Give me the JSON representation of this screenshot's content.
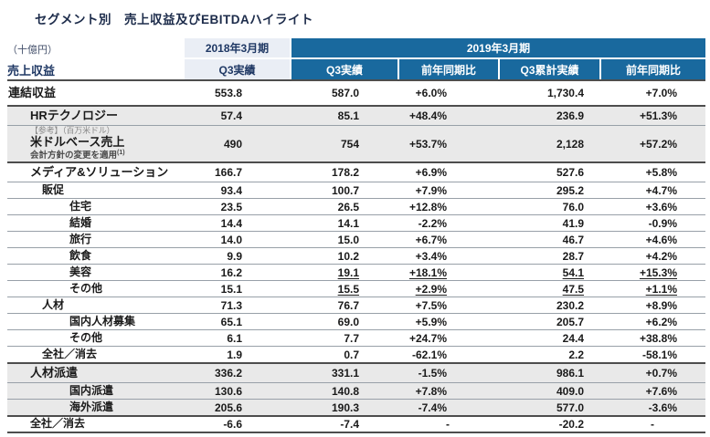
{
  "title": "セグメント別　売上収益及びEBITDAハイライト",
  "colors": {
    "header_blue": "#19699E",
    "header_light": "#EAEEF5",
    "shaded_row": "#E9E9E9",
    "navy_text": "#1F3864"
  },
  "table": {
    "header": {
      "unit_label": "（十億円）",
      "row_header": "売上収益",
      "fy2018": {
        "label": "2018年3月期",
        "sub": "Q3実績"
      },
      "fy2019": {
        "label": "2019年3月期",
        "subs": [
          "Q3実績",
          "前年同期比",
          "Q3累計実績",
          "前年同期比"
        ]
      }
    },
    "rows": [
      {
        "label": "連結収益",
        "kind": "total",
        "indent": 0,
        "shaded": false,
        "dark_top": false,
        "values": [
          "553.8",
          "587.0",
          "+6.0%",
          "1,730.4",
          "+7.0%"
        ]
      },
      {
        "label": "HRテクノロジー",
        "kind": "seg",
        "indent": 1,
        "shaded": true,
        "dark_top": true,
        "values": [
          "57.4",
          "85.1",
          "+48.4%",
          "236.9",
          "+51.3%"
        ]
      },
      {
        "label": "米ドルベース売上",
        "kind": "usd",
        "indent": 1,
        "shaded": true,
        "dark_top": false,
        "note_top": "【参考】（百万米ドル）",
        "note_bottom": "会計方針の変更を適用",
        "footnote_marker": "(1)",
        "values": [
          "490",
          "754",
          "+53.7%",
          "2,128",
          "+57.2%"
        ]
      },
      {
        "label": "メディア&ソリューション",
        "kind": "seg",
        "indent": 1,
        "shaded": false,
        "dark_top": true,
        "values": [
          "166.7",
          "178.2",
          "+6.9%",
          "527.6",
          "+5.8%"
        ]
      },
      {
        "label": "販促",
        "kind": "item",
        "indent": 2,
        "shaded": false,
        "dark_top": false,
        "values": [
          "93.4",
          "100.7",
          "+7.9%",
          "295.2",
          "+4.7%"
        ]
      },
      {
        "label": "住宅",
        "kind": "item",
        "indent": 3,
        "shaded": false,
        "dark_top": false,
        "values": [
          "23.5",
          "26.5",
          "+12.8%",
          "76.0",
          "+3.6%"
        ]
      },
      {
        "label": "結婚",
        "kind": "item",
        "indent": 3,
        "shaded": false,
        "dark_top": false,
        "values": [
          "14.4",
          "14.1",
          "-2.2%",
          "41.9",
          "-0.9%"
        ]
      },
      {
        "label": "旅行",
        "kind": "item",
        "indent": 3,
        "shaded": false,
        "dark_top": false,
        "values": [
          "14.0",
          "15.0",
          "+6.7%",
          "46.7",
          "+4.6%"
        ]
      },
      {
        "label": "飲食",
        "kind": "item",
        "indent": 3,
        "shaded": false,
        "dark_top": false,
        "values": [
          "9.9",
          "10.2",
          "+3.4%",
          "28.7",
          "+4.2%"
        ]
      },
      {
        "label": "美容",
        "kind": "item",
        "indent": 3,
        "shaded": false,
        "dark_top": false,
        "values": [
          "16.2",
          "19.1",
          "+18.1%",
          "54.1",
          "+15.3%"
        ],
        "underline": [
          false,
          true,
          true,
          true,
          true
        ]
      },
      {
        "label": "その他",
        "kind": "item",
        "indent": 3,
        "shaded": false,
        "dark_top": false,
        "values": [
          "15.1",
          "15.5",
          "+2.9%",
          "47.5",
          "+1.1%"
        ],
        "underline": [
          false,
          true,
          true,
          true,
          true
        ]
      },
      {
        "label": "人材",
        "kind": "item",
        "indent": 2,
        "shaded": false,
        "dark_top": false,
        "values": [
          "71.3",
          "76.7",
          "+7.5%",
          "230.2",
          "+8.9%"
        ]
      },
      {
        "label": "国内人材募集",
        "kind": "item",
        "indent": 3,
        "shaded": false,
        "dark_top": false,
        "values": [
          "65.1",
          "69.0",
          "+5.9%",
          "205.7",
          "+6.2%"
        ]
      },
      {
        "label": "その他",
        "kind": "item",
        "indent": 3,
        "shaded": false,
        "dark_top": false,
        "values": [
          "6.1",
          "7.7",
          "+24.7%",
          "24.4",
          "+38.8%"
        ]
      },
      {
        "label": "全社／消去",
        "kind": "item",
        "indent": 2,
        "shaded": false,
        "dark_top": false,
        "values": [
          "1.9",
          "0.7",
          "-62.1%",
          "2.2",
          "-58.1%"
        ]
      },
      {
        "label": "人材派遣",
        "kind": "seg",
        "indent": 1,
        "shaded": true,
        "dark_top": true,
        "values": [
          "336.2",
          "331.1",
          "-1.5%",
          "986.1",
          "+0.7%"
        ]
      },
      {
        "label": "国内派遣",
        "kind": "item",
        "indent": 3,
        "shaded": true,
        "dark_top": false,
        "values": [
          "130.6",
          "140.8",
          "+7.8%",
          "409.0",
          "+7.6%"
        ]
      },
      {
        "label": "海外派遣",
        "kind": "item",
        "indent": 3,
        "shaded": true,
        "dark_top": false,
        "values": [
          "205.6",
          "190.3",
          "-7.4%",
          "577.0",
          "-3.6%"
        ]
      },
      {
        "label": "全社／消去",
        "kind": "item",
        "indent": 1,
        "shaded": false,
        "dark_top": true,
        "values": [
          "-6.6",
          "-7.4",
          "-",
          "-20.2",
          "-"
        ]
      }
    ]
  }
}
